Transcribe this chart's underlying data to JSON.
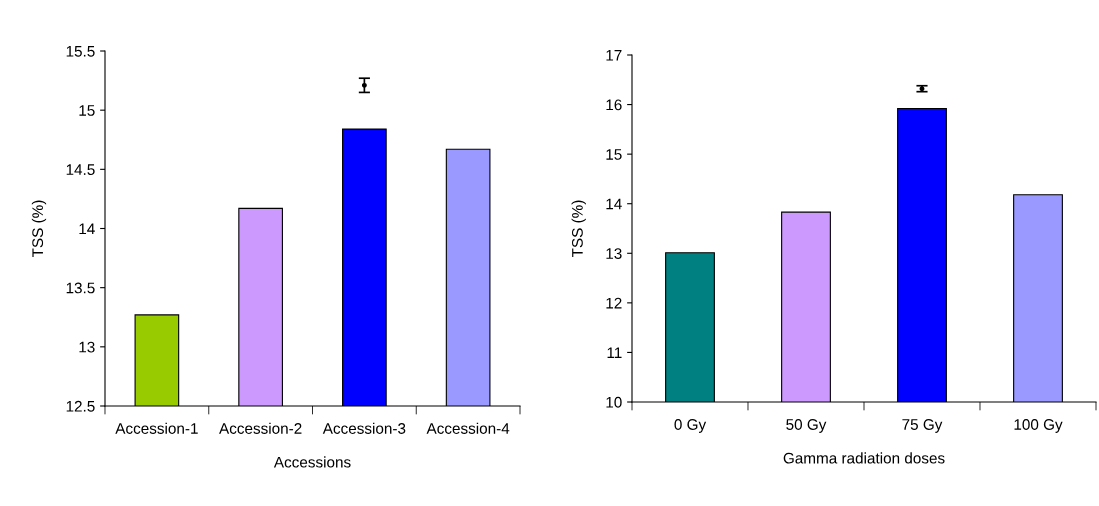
{
  "chart_data": [
    {
      "type": "bar",
      "xlabel": "Accessions",
      "ylabel": "TSS (%)",
      "categories": [
        "Accession-1",
        "Accession-2",
        "Accession-3",
        "Accession-4"
      ],
      "ylim": [
        12.5,
        15.5
      ],
      "yticks": [
        12.5,
        13,
        13.5,
        14,
        14.5,
        15,
        15.5
      ],
      "grid": false,
      "legend": false,
      "series": [
        {
          "values": [
            13.27,
            14.17,
            14.84,
            14.67
          ],
          "colors": [
            "#99cc00",
            "#cc99ff",
            "#0000ff",
            "#9999ff"
          ]
        },
        {
          "type": "scatter",
          "x": [
            "Accession-3"
          ],
          "values": [
            15.21
          ],
          "errors": [
            0.06
          ],
          "color": "#000000"
        }
      ]
    },
    {
      "type": "bar",
      "xlabel": "Gamma radiation doses",
      "ylabel": "TSS (%)",
      "categories": [
        "0 Gy",
        "50 Gy",
        "75 Gy",
        "100 Gy"
      ],
      "ylim": [
        10,
        17
      ],
      "yticks": [
        10,
        11,
        12,
        13,
        14,
        15,
        16,
        17
      ],
      "grid": false,
      "legend": false,
      "series": [
        {
          "values": [
            13.01,
            13.83,
            15.92,
            14.18
          ],
          "colors": [
            "#008080",
            "#cc99ff",
            "#0000ff",
            "#9999ff"
          ]
        },
        {
          "type": "scatter",
          "x": [
            "75 Gy"
          ],
          "values": [
            16.32
          ],
          "errors": [
            0.06
          ],
          "color": "#000000"
        }
      ]
    }
  ]
}
